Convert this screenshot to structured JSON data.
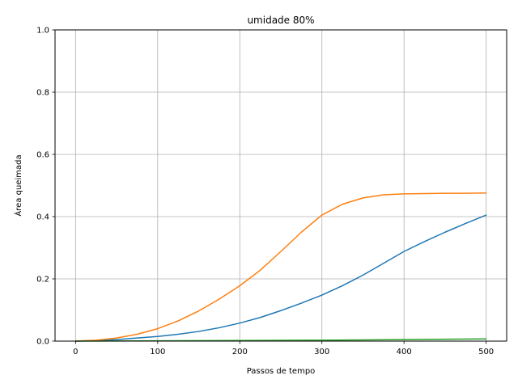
{
  "chart_data": {
    "type": "line",
    "title": "umidade 80%",
    "xlabel": "Passos de tempo",
    "ylabel": "Área queimada",
    "xlim": [
      -25,
      525
    ],
    "ylim": [
      0,
      1
    ],
    "xticks": [
      0,
      100,
      200,
      300,
      400,
      500
    ],
    "yticks": [
      0.0,
      0.2,
      0.4,
      0.6,
      0.8,
      1.0
    ],
    "xtick_labels": [
      "0",
      "100",
      "200",
      "300",
      "400",
      "500"
    ],
    "ytick_labels": [
      "0.0",
      "0.2",
      "0.4",
      "0.6",
      "0.8",
      "1.0"
    ],
    "grid": true,
    "series": [
      {
        "color": "#1f77b4",
        "x": [
          0,
          25,
          50,
          75,
          100,
          125,
          150,
          175,
          200,
          225,
          250,
          275,
          300,
          325,
          350,
          375,
          400,
          425,
          450,
          475,
          500
        ],
        "y": [
          0.0,
          0.002,
          0.005,
          0.01,
          0.015,
          0.022,
          0.031,
          0.043,
          0.058,
          0.076,
          0.098,
          0.122,
          0.148,
          0.178,
          0.212,
          0.25,
          0.288,
          0.32,
          0.35,
          0.378,
          0.405
        ]
      },
      {
        "color": "#ff7f0e",
        "x": [
          0,
          25,
          50,
          75,
          100,
          125,
          150,
          175,
          200,
          225,
          250,
          275,
          300,
          325,
          350,
          375,
          400,
          425,
          450,
          475,
          500
        ],
        "y": [
          0.0,
          0.003,
          0.01,
          0.022,
          0.04,
          0.065,
          0.097,
          0.135,
          0.178,
          0.228,
          0.288,
          0.35,
          0.405,
          0.44,
          0.46,
          0.47,
          0.473,
          0.474,
          0.475,
          0.475,
          0.476
        ]
      },
      {
        "color": "#2ca02c",
        "x": [
          0,
          100,
          200,
          300,
          400,
          500
        ],
        "y": [
          0.0,
          0.001,
          0.002,
          0.003,
          0.005,
          0.007
        ]
      }
    ]
  }
}
